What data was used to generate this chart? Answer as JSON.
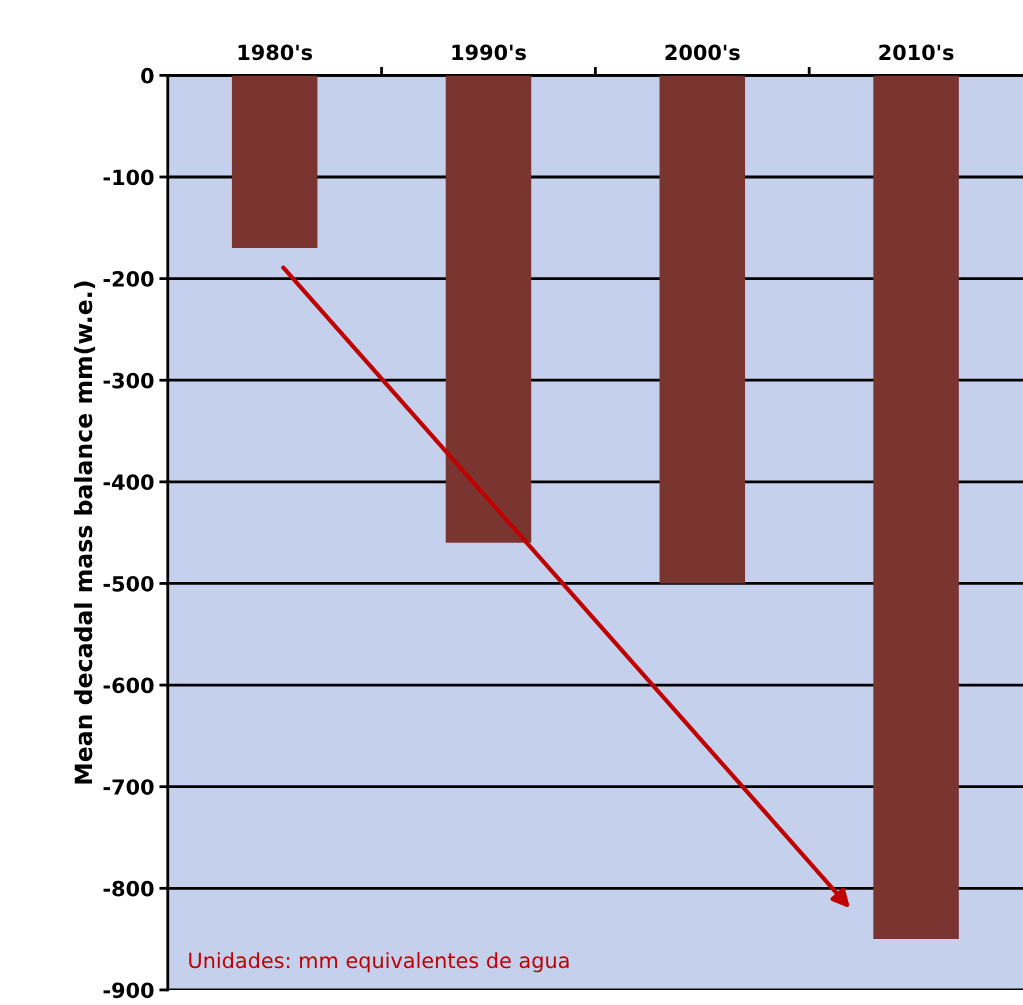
{
  "chart_data": {
    "type": "bar",
    "ylabel": "Mean decadal mass balance mm(w.e.)",
    "categories": [
      "1980's",
      "1990's",
      "2000's",
      "2010's"
    ],
    "values": [
      -170,
      -460,
      -500,
      -850
    ],
    "color": "#7b3530",
    "ylim": [
      -900,
      0
    ],
    "yticks": [
      -900,
      -800,
      -700,
      -600,
      -500,
      -400,
      -300,
      -200,
      -100,
      0
    ],
    "grid": "y",
    "legend": false,
    "annotations": [
      "Unidades: mm equivalentes de agua"
    ]
  }
}
